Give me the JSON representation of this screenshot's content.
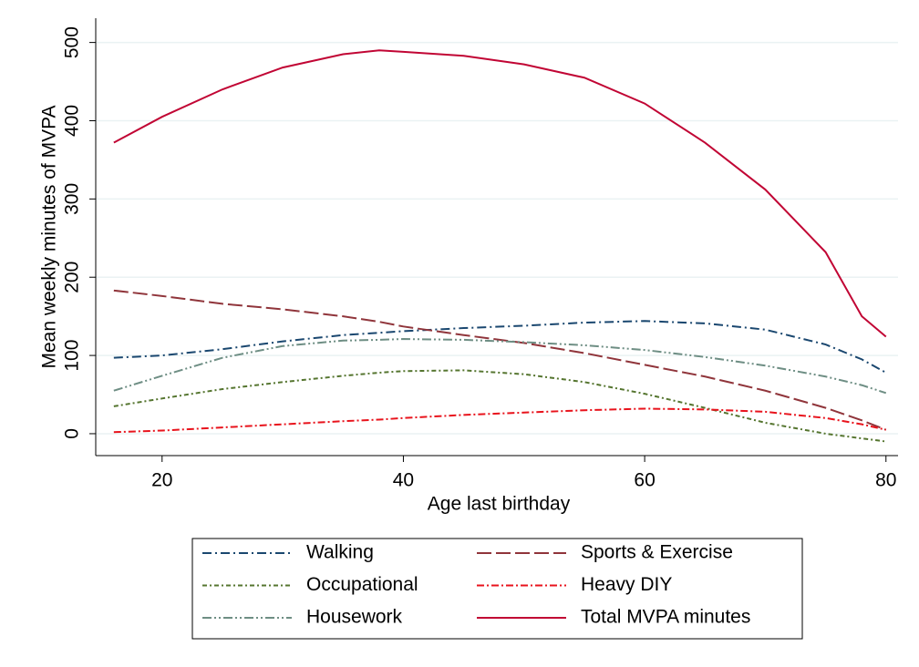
{
  "chart_data": {
    "type": "line",
    "xlabel": "Age last birthday",
    "ylabel": "Mean weekly minutes of MVPA",
    "x": [
      16,
      20,
      25,
      30,
      35,
      38,
      40,
      45,
      50,
      55,
      60,
      65,
      70,
      75,
      78,
      80
    ],
    "series": [
      {
        "name": "Walking",
        "color": "#1a476f",
        "dash": "10 4 2 4",
        "values": [
          97,
          100,
          108,
          118,
          126,
          129,
          131,
          135,
          138,
          142,
          144,
          141,
          133,
          114,
          95,
          78
        ]
      },
      {
        "name": "Sports & Exercise",
        "color": "#90353b",
        "dash": "16 5",
        "values": [
          183,
          176,
          166,
          159,
          150,
          143,
          137,
          126,
          116,
          103,
          88,
          73,
          55,
          33,
          17,
          5
        ]
      },
      {
        "name": "Occupational",
        "color": "#55752f",
        "dash": "5 3 2 3",
        "values": [
          35,
          45,
          57,
          66,
          74,
          78,
          80,
          81,
          76,
          66,
          51,
          33,
          14,
          0,
          -6,
          -10
        ]
      },
      {
        "name": "Heavy DIY",
        "color": "#e8131c",
        "dash": "8 3 2 3",
        "values": [
          2,
          4,
          8,
          12,
          16,
          18,
          20,
          24,
          27,
          30,
          32,
          31,
          28,
          20,
          12,
          5
        ]
      },
      {
        "name": "Housework",
        "color": "#6e8e84",
        "dash": "10 3 2 3 2 3",
        "values": [
          55,
          74,
          97,
          112,
          119,
          120,
          121,
          120,
          117,
          113,
          107,
          98,
          87,
          73,
          62,
          52
        ]
      },
      {
        "name": "Total MVPA minutes",
        "color": "#c10534",
        "dash": "none",
        "values": [
          372,
          405,
          440,
          468,
          485,
          490,
          488,
          483,
          472,
          455,
          422,
          372,
          312,
          232,
          150,
          124
        ]
      }
    ],
    "xlim": [
      14.5,
      81
    ],
    "xticks": [
      20,
      40,
      60,
      80
    ],
    "ylim": [
      -28,
      531
    ],
    "yticks": [
      0,
      100,
      200,
      300,
      400,
      500
    ],
    "grid": true,
    "legend": "bottom"
  }
}
